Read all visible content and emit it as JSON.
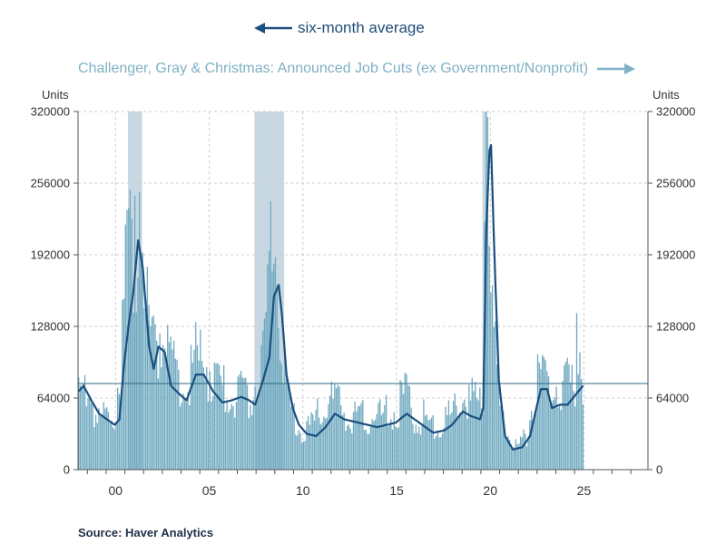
{
  "legend": {
    "avg_label": "six-month average",
    "bars_label": "Challenger, Gray & Christmas: Announced Job Cuts (ex Government/Nonprofit)"
  },
  "units": {
    "left": "Units",
    "right": "Units"
  },
  "source": "Source:  Haver Analytics",
  "colors": {
    "bars": "#6fa9c0",
    "average_line": "#1b4f7e",
    "recession_shading": "#c8d8e2",
    "grid": "#cccccc",
    "reference_line": "#2a6a85"
  },
  "chart_data": {
    "type": "bar",
    "title": "",
    "xlabel": "",
    "ylabel": "Units",
    "ylim": [
      0,
      320000
    ],
    "xlim": [
      "1998-07",
      "2028-12"
    ],
    "x_tick_labels": [
      "00",
      "05",
      "10",
      "15",
      "20",
      "25"
    ],
    "y_tick_labels": [
      "0",
      "64000",
      "128000",
      "192000",
      "256000",
      "320000"
    ],
    "grid": true,
    "legend_placement": "top",
    "recessions": [
      {
        "start": "2001-03",
        "end": "2001-11"
      },
      {
        "start": "2007-12",
        "end": "2009-06"
      },
      {
        "start": "2020-02",
        "end": "2020-04"
      }
    ],
    "reference_line": {
      "y": 77000
    },
    "series": [
      {
        "name": "Challenger, Gray & Christmas: Announced Job Cuts (ex Government/Nonprofit)",
        "kind": "bar",
        "anchors": [
          [
            "1998-07",
            55000
          ],
          [
            "1999-01",
            60000
          ],
          [
            "1999-06",
            42000
          ],
          [
            "1999-12",
            36000
          ],
          [
            "2000-06",
            42000
          ],
          [
            "2000-10",
            80000
          ],
          [
            "2001-01",
            135000
          ],
          [
            "2001-04",
            170000
          ],
          [
            "2001-07",
            150000
          ],
          [
            "2001-10",
            210000
          ],
          [
            "2002-02",
            130000
          ],
          [
            "2002-06",
            90000
          ],
          [
            "2002-11",
            100000
          ],
          [
            "2003-04",
            85000
          ],
          [
            "2003-10",
            62000
          ],
          [
            "2004-04",
            55000
          ],
          [
            "2004-10",
            80000
          ],
          [
            "2005-06",
            75000
          ],
          [
            "2006-01",
            62000
          ],
          [
            "2006-06",
            55000
          ],
          [
            "2007-01",
            60000
          ],
          [
            "2007-06",
            50000
          ],
          [
            "2007-12",
            65000
          ],
          [
            "2008-06",
            95000
          ],
          [
            "2008-11",
            180000
          ],
          [
            "2009-02",
            150000
          ],
          [
            "2009-05",
            90000
          ],
          [
            "2009-09",
            50000
          ],
          [
            "2010-01",
            40000
          ],
          [
            "2010-06",
            30000
          ],
          [
            "2011-01",
            32000
          ],
          [
            "2011-06",
            45000
          ],
          [
            "2012-01",
            50000
          ],
          [
            "2012-06",
            45000
          ],
          [
            "2013-01",
            42000
          ],
          [
            "2013-06",
            38000
          ],
          [
            "2014-06",
            38000
          ],
          [
            "2015-06",
            45000
          ],
          [
            "2016-01",
            55000
          ],
          [
            "2016-06",
            40000
          ],
          [
            "2017-01",
            38000
          ],
          [
            "2017-06",
            33000
          ],
          [
            "2018-01",
            35000
          ],
          [
            "2018-06",
            40000
          ],
          [
            "2019-01",
            55000
          ],
          [
            "2019-06",
            50000
          ],
          [
            "2019-12",
            48000
          ],
          [
            "2020-02",
            60000
          ],
          [
            "2020-03",
            220000
          ],
          [
            "2020-04",
            320000
          ],
          [
            "2020-05",
            300000
          ],
          [
            "2020-06",
            170000
          ],
          [
            "2020-09",
            100000
          ],
          [
            "2021-01",
            45000
          ],
          [
            "2021-06",
            25000
          ],
          [
            "2021-12",
            15000
          ],
          [
            "2022-06",
            25000
          ],
          [
            "2022-12",
            65000
          ],
          [
            "2023-03",
            85000
          ],
          [
            "2023-09",
            55000
          ],
          [
            "2024-03",
            65000
          ],
          [
            "2024-09",
            60000
          ],
          [
            "2025-01",
            60000
          ],
          [
            "2025-03",
            100000
          ],
          [
            "2025-06",
            60000
          ]
        ],
        "spikes": [
          [
            "2001-04",
            250000
          ],
          [
            "2001-07",
            245000
          ],
          [
            "2001-10",
            248000
          ],
          [
            "2002-02",
            140000
          ],
          [
            "2002-08",
            130000
          ],
          [
            "2008-10",
            240000
          ],
          [
            "2009-01",
            190000
          ],
          [
            "2020-03",
            222000
          ],
          [
            "2020-04",
            320000
          ],
          [
            "2020-05",
            315000
          ],
          [
            "2020-06",
            200000
          ],
          [
            "2023-01",
            103000
          ],
          [
            "2023-03",
            90000
          ],
          [
            "2024-08",
            100000
          ],
          [
            "2025-02",
            140000
          ],
          [
            "2025-04",
            105000
          ]
        ]
      },
      {
        "name": "six-month average",
        "kind": "line",
        "anchors": [
          [
            "1998-07",
            70000
          ],
          [
            "1998-10",
            75000
          ],
          [
            "1999-03",
            62000
          ],
          [
            "1999-08",
            50000
          ],
          [
            "2000-01",
            45000
          ],
          [
            "2000-06",
            40000
          ],
          [
            "2000-09",
            45000
          ],
          [
            "2000-12",
            95000
          ],
          [
            "2001-03",
            130000
          ],
          [
            "2001-06",
            160000
          ],
          [
            "2001-09",
            205000
          ],
          [
            "2001-12",
            180000
          ],
          [
            "2002-04",
            110000
          ],
          [
            "2002-07",
            90000
          ],
          [
            "2002-10",
            110000
          ],
          [
            "2003-02",
            105000
          ],
          [
            "2003-06",
            75000
          ],
          [
            "2003-11",
            68000
          ],
          [
            "2004-04",
            62000
          ],
          [
            "2004-10",
            85000
          ],
          [
            "2005-03",
            85000
          ],
          [
            "2005-09",
            70000
          ],
          [
            "2006-03",
            60000
          ],
          [
            "2006-09",
            62000
          ],
          [
            "2007-03",
            65000
          ],
          [
            "2007-08",
            62000
          ],
          [
            "2007-12",
            58000
          ],
          [
            "2008-05",
            80000
          ],
          [
            "2008-09",
            100000
          ],
          [
            "2008-12",
            155000
          ],
          [
            "2009-03",
            165000
          ],
          [
            "2009-05",
            140000
          ],
          [
            "2009-08",
            85000
          ],
          [
            "2009-12",
            55000
          ],
          [
            "2010-04",
            40000
          ],
          [
            "2010-09",
            32000
          ],
          [
            "2011-03",
            30000
          ],
          [
            "2011-09",
            38000
          ],
          [
            "2012-03",
            50000
          ],
          [
            "2012-09",
            45000
          ],
          [
            "2013-06",
            42000
          ],
          [
            "2014-06",
            38000
          ],
          [
            "2015-06",
            42000
          ],
          [
            "2016-01",
            50000
          ],
          [
            "2016-06",
            45000
          ],
          [
            "2017-01",
            38000
          ],
          [
            "2017-06",
            33000
          ],
          [
            "2018-01",
            35000
          ],
          [
            "2018-06",
            40000
          ],
          [
            "2019-01",
            52000
          ],
          [
            "2019-06",
            48000
          ],
          [
            "2019-12",
            45000
          ],
          [
            "2020-02",
            55000
          ],
          [
            "2020-04",
            215000
          ],
          [
            "2020-06",
            285000
          ],
          [
            "2020-07",
            290000
          ],
          [
            "2020-09",
            200000
          ],
          [
            "2020-12",
            80000
          ],
          [
            "2021-04",
            30000
          ],
          [
            "2021-09",
            18000
          ],
          [
            "2022-03",
            20000
          ],
          [
            "2022-08",
            30000
          ],
          [
            "2022-12",
            55000
          ],
          [
            "2023-03",
            72000
          ],
          [
            "2023-07",
            72000
          ],
          [
            "2023-10",
            55000
          ],
          [
            "2024-03",
            58000
          ],
          [
            "2024-08",
            58000
          ],
          [
            "2024-12",
            65000
          ],
          [
            "2025-03",
            70000
          ],
          [
            "2025-06",
            75000
          ]
        ]
      }
    ]
  }
}
